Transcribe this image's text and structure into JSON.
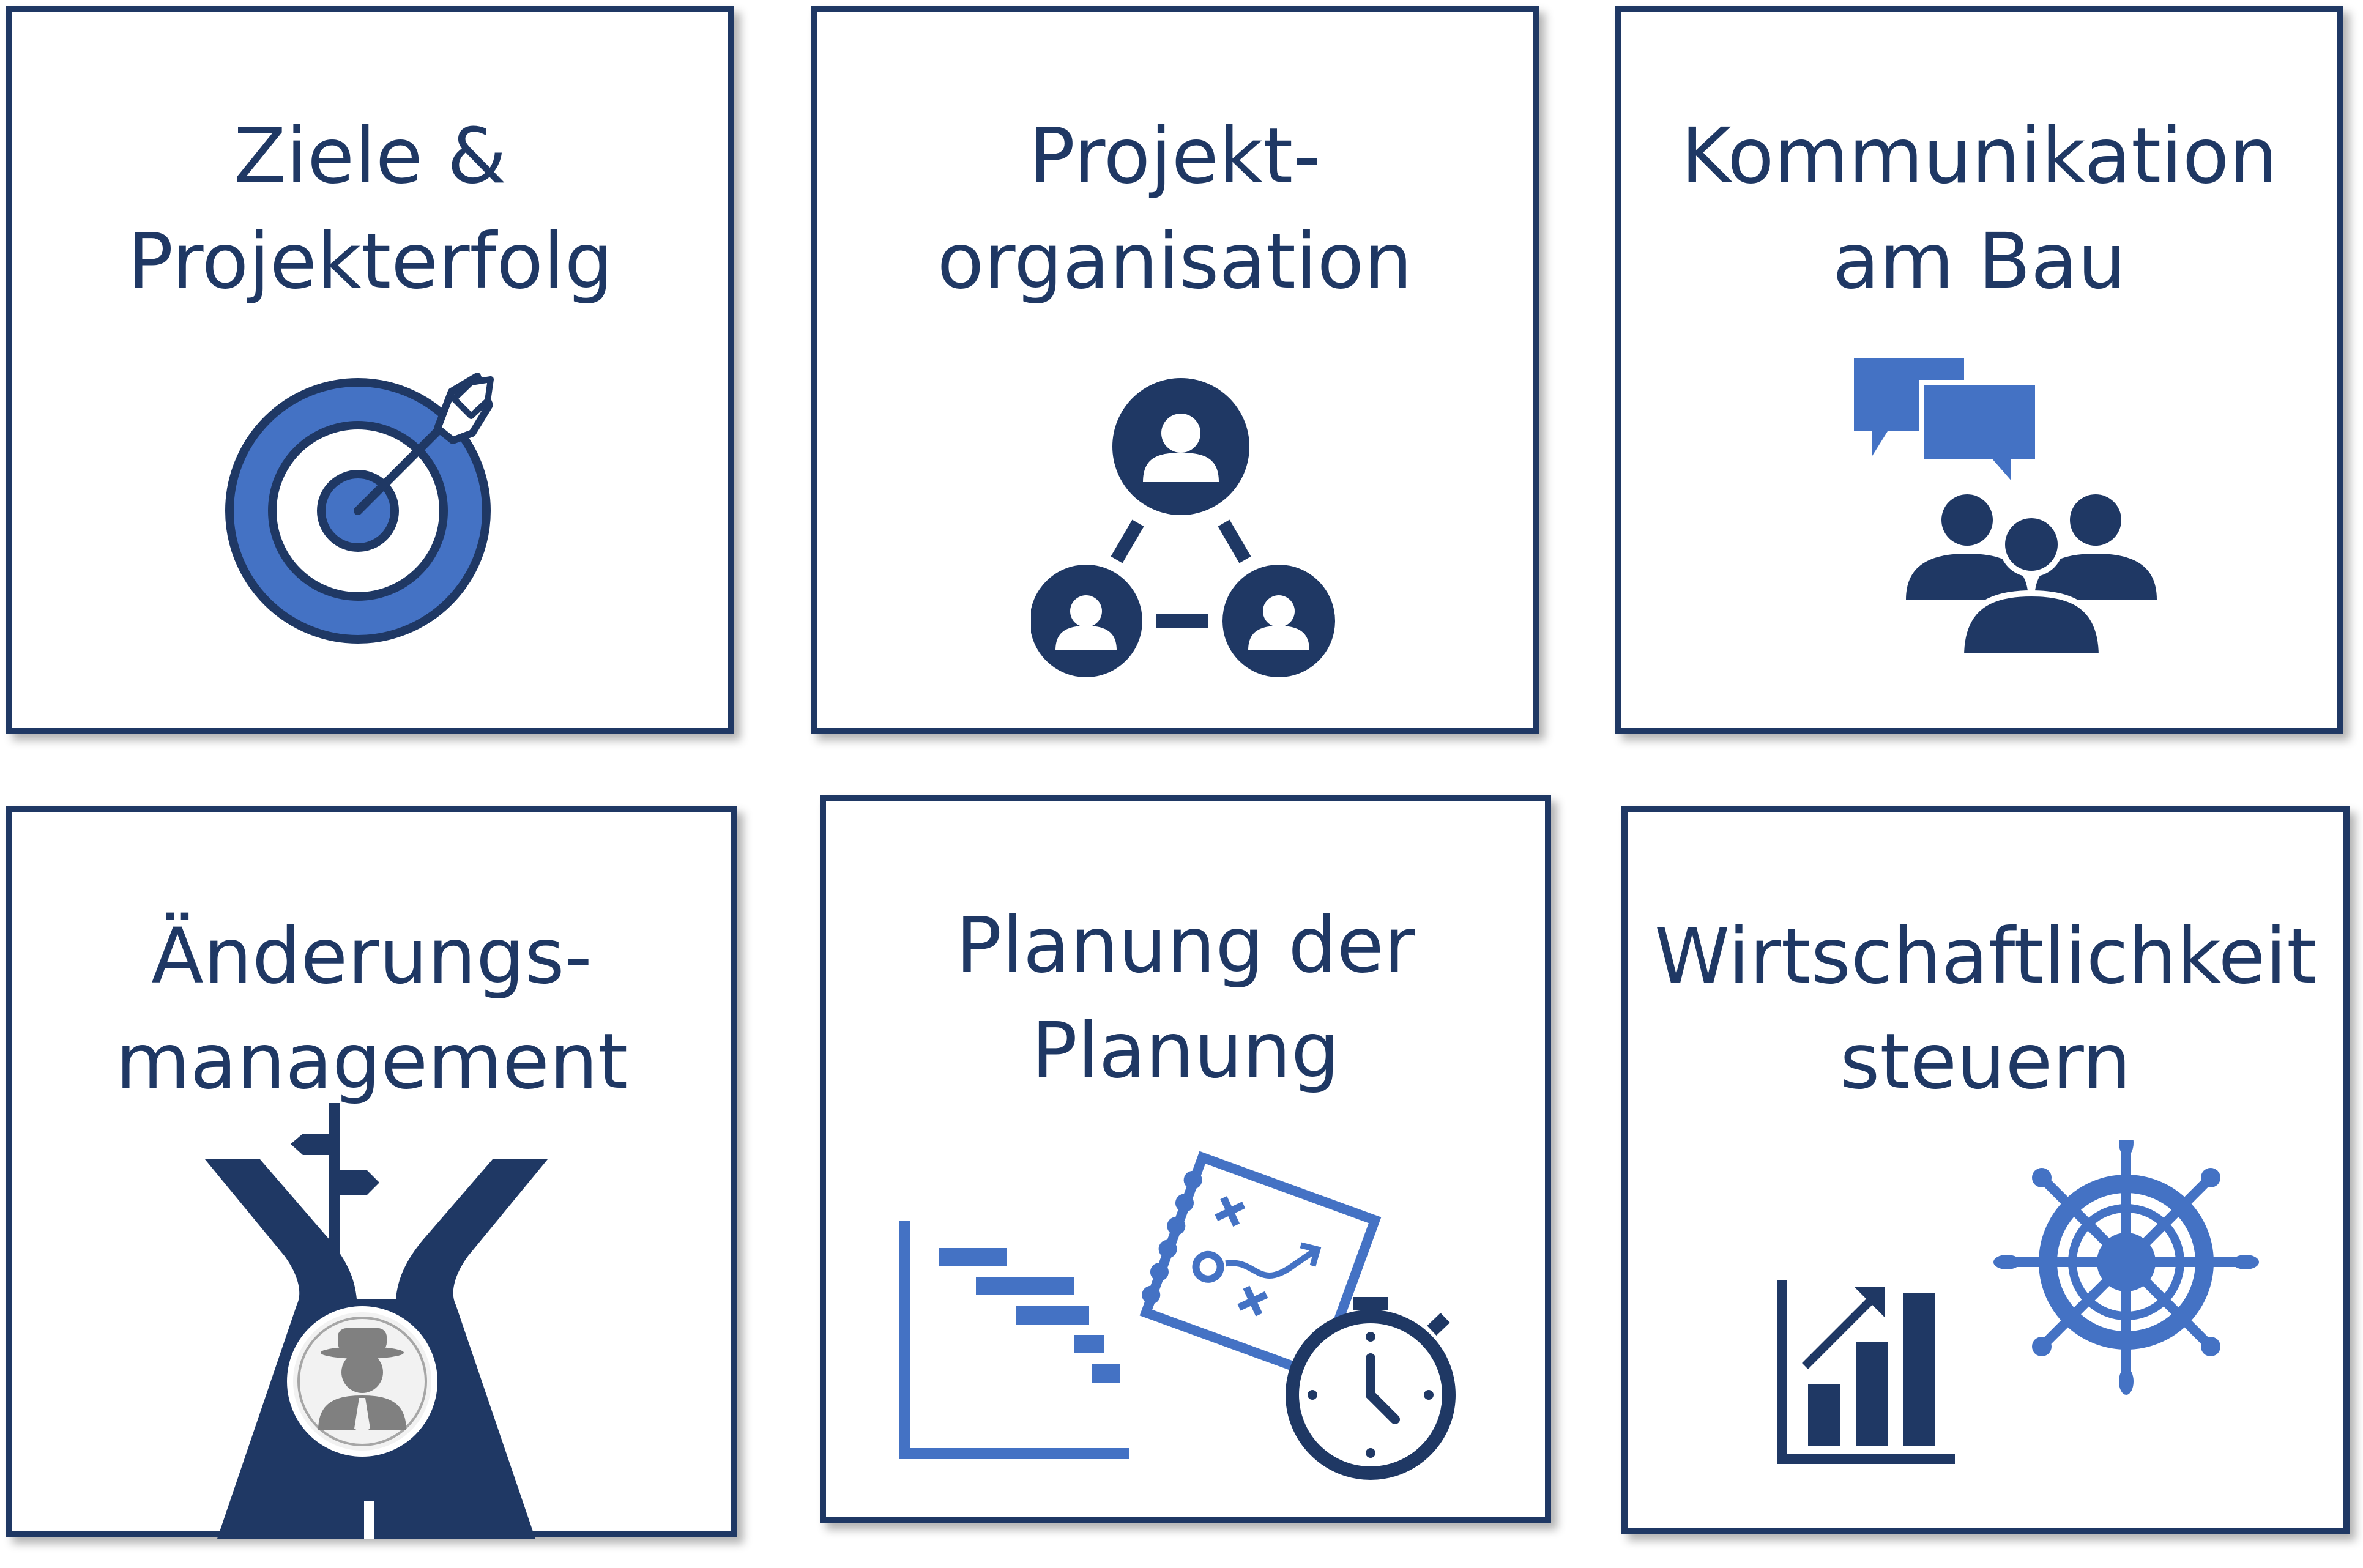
{
  "tiles": [
    {
      "id": "ziele",
      "title_lines": [
        "Ziele &",
        "Projekterfolg"
      ],
      "icon": "target-arrow-icon"
    },
    {
      "id": "projektorganisation",
      "title_lines": [
        "Projekt-",
        "organisation"
      ],
      "icon": "team-network-icon"
    },
    {
      "id": "kommunikation",
      "title_lines": [
        "Kommunikation",
        "am Bau"
      ],
      "icon": "meeting-chat-icon"
    },
    {
      "id": "aenderungsmanagement",
      "title_lines": [
        "Änderungs-",
        "management"
      ],
      "icon": "crossroads-signpost-icon"
    },
    {
      "id": "planung",
      "title_lines": [
        "Planung der",
        "Planung"
      ],
      "icon": "gantt-strategy-stopwatch-icon"
    },
    {
      "id": "wirtschaftlichkeit",
      "title_lines": [
        "Wirtschaftlichkeit",
        "steuern"
      ],
      "icon": "chart-steering-wheel-icon"
    }
  ],
  "colors": {
    "dark_navy": "#1f3864",
    "accent_blue": "#4472c4",
    "gray": "#808080"
  }
}
